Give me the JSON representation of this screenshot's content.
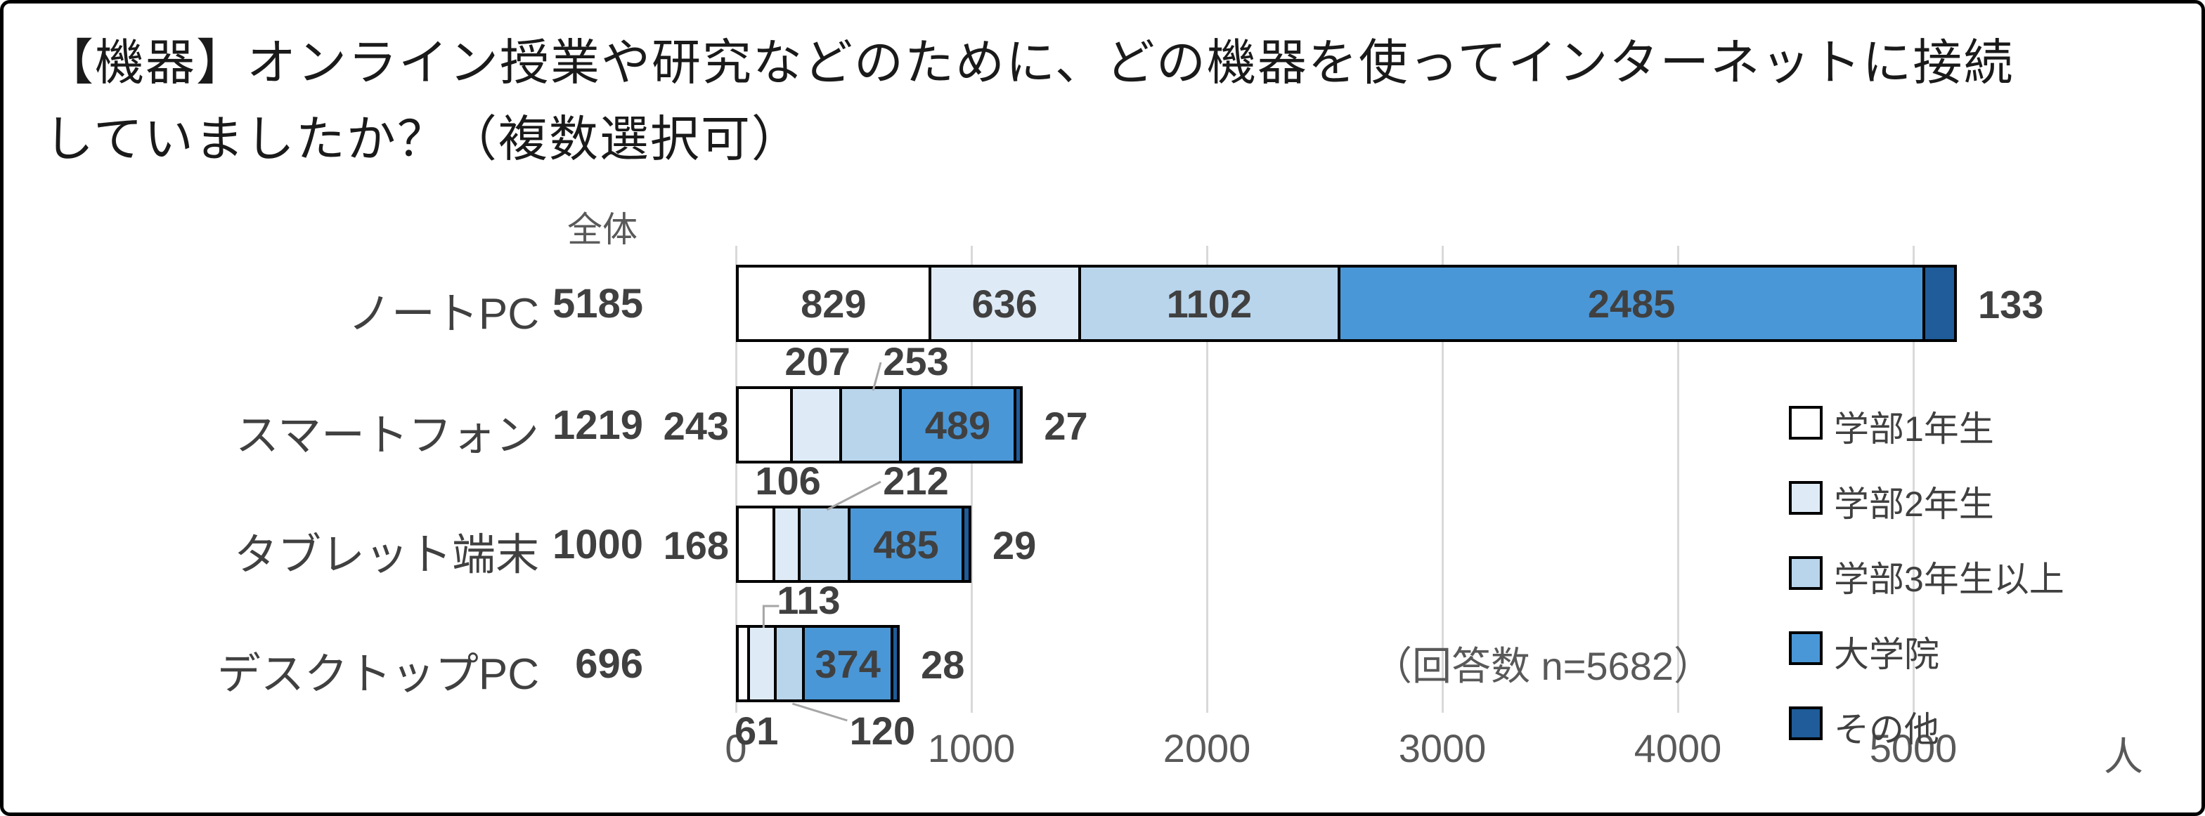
{
  "title": {
    "lines": [
      "【機器】オンライン授業や研究などのために、どの機器を使ってインターネットに接続",
      "していましたか？（複数選択可）"
    ]
  },
  "chart_data": {
    "type": "bar",
    "orientation": "horizontal",
    "stacked": true,
    "categories": [
      "ノートPC",
      "スマートフォン",
      "タブレット端末",
      "デスクトップPC"
    ],
    "totals_header": "全体",
    "totals": [
      5185,
      1219,
      1000,
      696
    ],
    "series": [
      {
        "name": "学部1年生",
        "color": "#FFFFFF",
        "values": [
          829,
          243,
          168,
          61
        ]
      },
      {
        "name": "学部2年生",
        "color": "#DEEBF7",
        "values": [
          636,
          207,
          106,
          113
        ]
      },
      {
        "name": "学部3年生以上",
        "color": "#B9D5EC",
        "values": [
          1102,
          253,
          212,
          120
        ]
      },
      {
        "name": "大学院",
        "color": "#4A97D7",
        "values": [
          2485,
          489,
          485,
          374
        ]
      },
      {
        "name": "その他",
        "color": "#1F5C99",
        "values": [
          133,
          27,
          29,
          28
        ]
      }
    ],
    "x_axis": {
      "ticks": [
        0,
        1000,
        2000,
        3000,
        4000,
        5000
      ],
      "unit": "人",
      "max": 5800
    },
    "grid": true,
    "legend_position": "right",
    "annotation": "（回答数 n=5682）",
    "label_layout": [
      [
        "in",
        "in",
        "in",
        "in",
        "right"
      ],
      [
        "left",
        "above",
        "above-leader",
        "in",
        "right"
      ],
      [
        "left",
        "above",
        "above-leader",
        "in",
        "right"
      ],
      [
        "below",
        "above-elbow",
        "below-leader",
        "in",
        "right"
      ]
    ]
  },
  "colors": {
    "grid": "#D9D9D9",
    "bar_border": "#000000",
    "label_text": "#404040",
    "axis_text": "#595959",
    "leader_line": "#A6A6A6",
    "frame_border": "#000000"
  }
}
